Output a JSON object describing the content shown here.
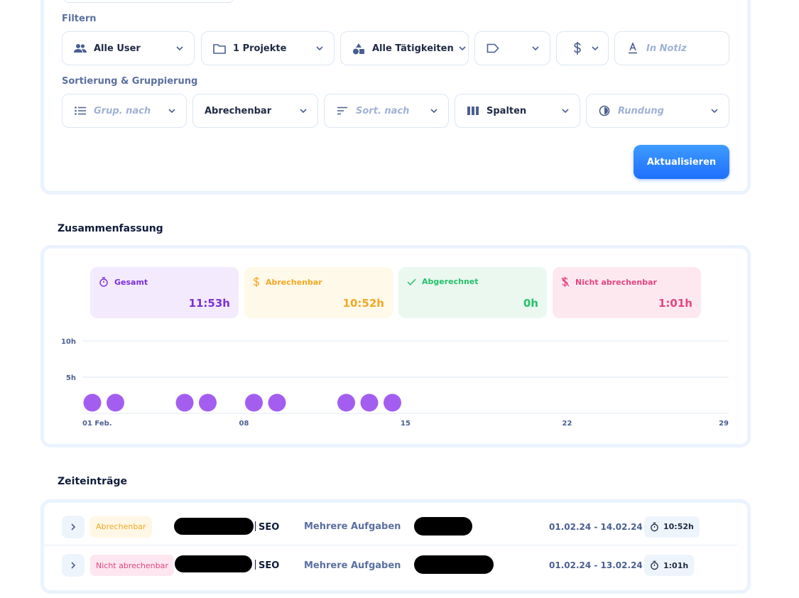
{
  "filters": {
    "section_label": "Filtern",
    "users": "Alle User",
    "projects": "1 Projekte",
    "activities": "Alle Tätigkeiten",
    "tag": "",
    "billing": "",
    "note_placeholder": "In Notiz"
  },
  "sorting": {
    "section_label": "Sortierung & Gruppierung",
    "group_placeholder": "Grup. nach",
    "group_value": "Abrechenbar",
    "sort_placeholder": "Sort. nach",
    "columns": "Spalten",
    "rounding_placeholder": "Rundung",
    "update_button": "Aktualisieren"
  },
  "summary": {
    "title": "Zusammenfassung",
    "stats": [
      {
        "label": "Gesamt",
        "value": "11:53h",
        "color": "#7b2fd6",
        "bg": "#f3eafd",
        "icon": "stopwatch-icon"
      },
      {
        "label": "Abrechenbar",
        "value": "10:52h",
        "color": "#f2a824",
        "bg": "#fff9ea",
        "icon": "dollar-icon"
      },
      {
        "label": "Abgerechnet",
        "value": "0h",
        "color": "#27c06a",
        "bg": "#eaf8f0",
        "icon": "check-icon"
      },
      {
        "label": "Nicht abrechenbar",
        "value": "1:01h",
        "color": "#e4457f",
        "bg": "#fde8f0",
        "icon": "dollar-off-icon"
      }
    ]
  },
  "chart_data": {
    "type": "scatter",
    "x_ticks": [
      "01 Feb.",
      "08",
      "15",
      "22",
      "29"
    ],
    "x_tick_days": [
      1,
      8,
      15,
      22,
      29
    ],
    "y_ticks": [
      "5h",
      "10h"
    ],
    "y_tick_values": [
      5,
      10
    ],
    "ylim": [
      0,
      10
    ],
    "xlim": [
      1,
      29
    ],
    "point_color": "#a35ef0",
    "point_days": [
      1,
      2,
      5,
      6,
      8,
      9,
      12,
      13,
      14
    ],
    "grid": true
  },
  "entries": {
    "title": "Zeiteinträge",
    "rows": [
      {
        "tag": "Abrechenbar",
        "tag_type": "billable",
        "project": "SEO",
        "task": "Mehrere Aufgaben",
        "dates": "01.02.24 - 14.02.24",
        "duration": "10:52h"
      },
      {
        "tag": "Nicht abrechenbar",
        "tag_type": "nonbill",
        "project": "SEO",
        "task": "Mehrere Aufgaben",
        "dates": "01.02.24 - 13.02.24",
        "duration": "1:01h"
      }
    ]
  }
}
